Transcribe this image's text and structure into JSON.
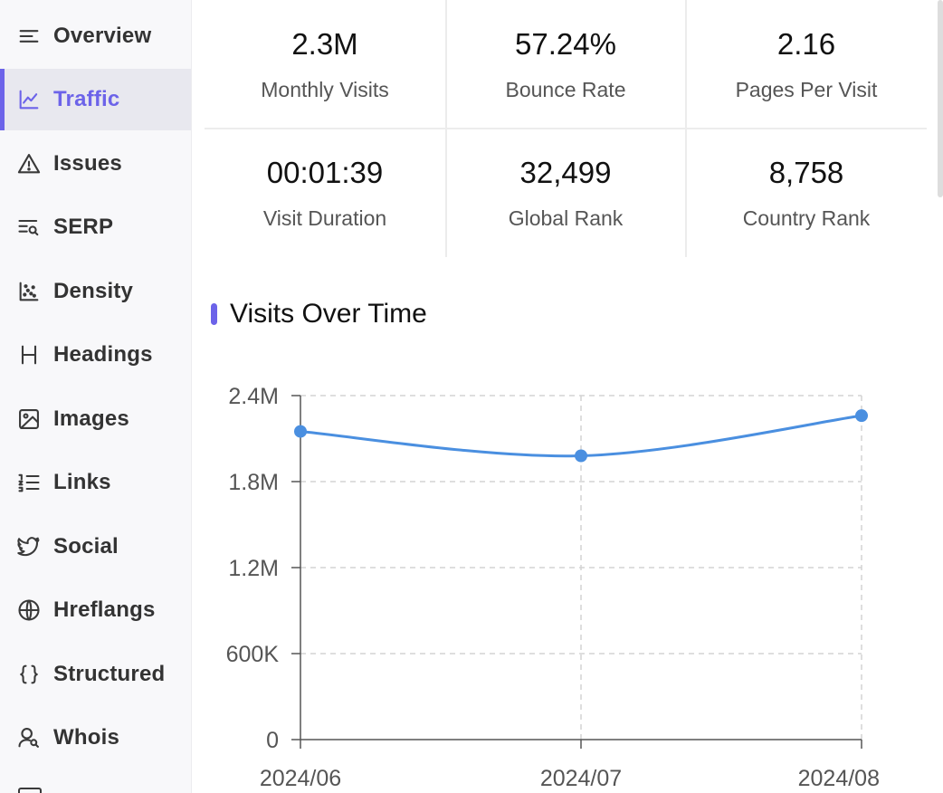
{
  "sidebar": {
    "items": [
      {
        "label": "Overview",
        "icon": "list-icon"
      },
      {
        "label": "Traffic",
        "icon": "line-chart-icon",
        "active": true
      },
      {
        "label": "Issues",
        "icon": "warning-icon"
      },
      {
        "label": "SERP",
        "icon": "serp-search-icon"
      },
      {
        "label": "Density",
        "icon": "scatter-chart-icon"
      },
      {
        "label": "Headings",
        "icon": "heading-icon"
      },
      {
        "label": "Images",
        "icon": "image-icon"
      },
      {
        "label": "Links",
        "icon": "link-list-icon"
      },
      {
        "label": "Social",
        "icon": "twitter-icon"
      },
      {
        "label": "Hreflangs",
        "icon": "globe-icon"
      },
      {
        "label": "Structured",
        "icon": "braces-icon"
      },
      {
        "label": "Whois",
        "icon": "user-search-icon"
      }
    ],
    "accent_color": "#6c63e9"
  },
  "stats": [
    {
      "value": "2.3M",
      "label": "Monthly Visits"
    },
    {
      "value": "57.24%",
      "label": "Bounce Rate"
    },
    {
      "value": "2.16",
      "label": "Pages Per Visit"
    },
    {
      "value": "00:01:39",
      "label": "Visit Duration"
    },
    {
      "value": "32,499",
      "label": "Global Rank"
    },
    {
      "value": "8,758",
      "label": "Country Rank"
    }
  ],
  "section": {
    "title": "Visits Over Time"
  },
  "chart_data": {
    "type": "line",
    "x": [
      "2024/06",
      "2024/07",
      "2024/08"
    ],
    "series": [
      {
        "values": [
          2150000,
          1980000,
          2260000
        ],
        "color": "#4a8fe0"
      }
    ],
    "y_ticks": [
      0,
      600000,
      1200000,
      1800000,
      2400000
    ],
    "y_tick_labels": [
      "0",
      "600K",
      "1.2M",
      "1.8M",
      "2.4M"
    ],
    "ylim": [
      0,
      2400000
    ],
    "grid": true,
    "smooth": true
  }
}
